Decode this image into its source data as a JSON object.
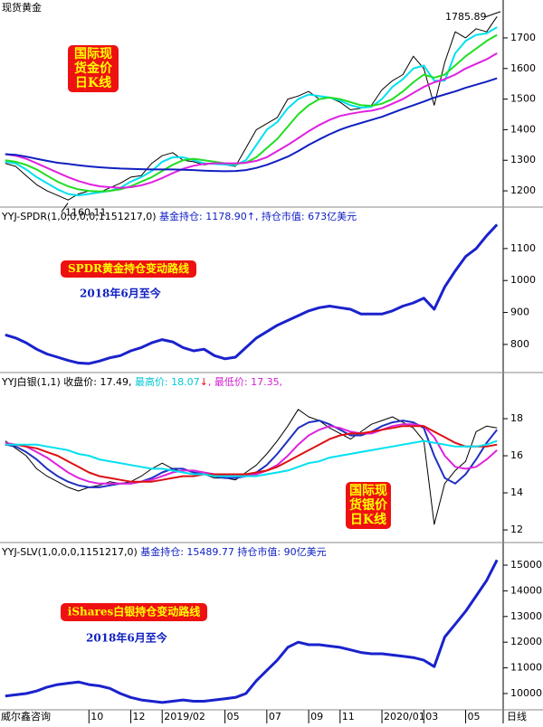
{
  "chart_data": [
    {
      "type": "line",
      "title": "现货黄金",
      "box_label": [
        "国际现",
        "货金价",
        "日K线"
      ],
      "high": 1785.89,
      "low": 1160.11,
      "ylim": [
        1147,
        1824
      ],
      "yticks": [
        1200,
        1300,
        1400,
        1500,
        1600,
        1700
      ],
      "series": [
        {
          "color": "#000000",
          "width": 1,
          "values": [
            1290,
            1280,
            1250,
            1220,
            1200,
            1185,
            1170,
            1190,
            1200,
            1195,
            1210,
            1225,
            1245,
            1250,
            1290,
            1315,
            1325,
            1300,
            1295,
            1285,
            1290,
            1285,
            1280,
            1340,
            1400,
            1420,
            1440,
            1500,
            1510,
            1525,
            1500,
            1505,
            1490,
            1465,
            1470,
            1480,
            1530,
            1560,
            1580,
            1640,
            1600,
            1480,
            1620,
            1720,
            1700,
            1730,
            1720,
            1770
          ]
        },
        {
          "color": "#00e0f0",
          "width": 2,
          "values": [
            1295,
            1290,
            1270,
            1245,
            1225,
            1205,
            1190,
            1185,
            1190,
            1195,
            1200,
            1210,
            1230,
            1245,
            1265,
            1295,
            1310,
            1310,
            1300,
            1290,
            1288,
            1286,
            1284,
            1300,
            1350,
            1400,
            1425,
            1470,
            1500,
            1515,
            1510,
            1505,
            1495,
            1480,
            1472,
            1475,
            1500,
            1540,
            1565,
            1600,
            1610,
            1560,
            1560,
            1650,
            1690,
            1710,
            1715,
            1735
          ]
        },
        {
          "color": "#22dd22",
          "width": 2,
          "values": [
            1300,
            1295,
            1285,
            1270,
            1250,
            1230,
            1215,
            1205,
            1200,
            1198,
            1200,
            1205,
            1215,
            1230,
            1245,
            1265,
            1285,
            1300,
            1305,
            1300,
            1295,
            1290,
            1288,
            1292,
            1310,
            1340,
            1370,
            1410,
            1450,
            1480,
            1500,
            1505,
            1500,
            1490,
            1480,
            1478,
            1485,
            1500,
            1525,
            1555,
            1580,
            1570,
            1580,
            1610,
            1640,
            1665,
            1690,
            1710
          ]
        },
        {
          "color": "#e020e0",
          "width": 2,
          "values": [
            1320,
            1315,
            1305,
            1290,
            1275,
            1260,
            1245,
            1232,
            1222,
            1215,
            1212,
            1210,
            1212,
            1218,
            1228,
            1242,
            1258,
            1272,
            1282,
            1288,
            1290,
            1290,
            1290,
            1292,
            1298,
            1310,
            1330,
            1350,
            1372,
            1395,
            1415,
            1432,
            1445,
            1452,
            1458,
            1462,
            1470,
            1485,
            1500,
            1520,
            1540,
            1555,
            1565,
            1580,
            1600,
            1615,
            1630,
            1650
          ]
        },
        {
          "color": "#1020c0",
          "width": 2,
          "values": [
            1320,
            1318,
            1312,
            1305,
            1298,
            1292,
            1288,
            1284,
            1280,
            1277,
            1275,
            1273,
            1272,
            1271,
            1270,
            1270,
            1270,
            1269,
            1268,
            1266,
            1265,
            1264,
            1265,
            1268,
            1275,
            1285,
            1298,
            1312,
            1330,
            1350,
            1368,
            1385,
            1400,
            1412,
            1422,
            1432,
            1442,
            1455,
            1468,
            1480,
            1492,
            1505,
            1515,
            1525,
            1537,
            1547,
            1557,
            1568
          ]
        }
      ]
    },
    {
      "type": "line",
      "header": [
        {
          "text": "YYJ-SPDR(1,0,0,0,0,1151217,0) ",
          "color": "#000000"
        },
        {
          "text": "基金持仓: 1178.90↑, 持仓市值: 673亿美元",
          "color": "#1020c0"
        }
      ],
      "box_label": [
        "SPDR黄金持仓变动路线"
      ],
      "subtitle": "2018年6月至今",
      "ylim": [
        712,
        1227
      ],
      "yticks": [
        800,
        900,
        1000,
        1100
      ],
      "series": [
        {
          "color": "#1a22cc",
          "width": 3,
          "values": [
            830,
            820,
            805,
            785,
            770,
            760,
            750,
            742,
            740,
            748,
            758,
            765,
            780,
            790,
            805,
            815,
            808,
            790,
            780,
            785,
            765,
            755,
            760,
            790,
            820,
            840,
            860,
            875,
            890,
            905,
            915,
            920,
            915,
            910,
            895,
            895,
            895,
            905,
            920,
            930,
            945,
            910,
            980,
            1030,
            1075,
            1100,
            1140,
            1175
          ]
        }
      ]
    },
    {
      "type": "line",
      "header": [
        {
          "text": "YYJ白银(1,1) 收盘价: 17.49, ",
          "color": "#000000"
        },
        {
          "text": "最高价: 18.07",
          "color": "#00c8d8"
        },
        {
          "text": "↓",
          "color": "#e01010"
        },
        {
          "text": ", 最低价: 17.35,",
          "color": "#d020d0"
        }
      ],
      "box_label": [
        "国际现",
        "货银价",
        "日K线"
      ],
      "ylim": [
        11.32,
        20.44
      ],
      "yticks": [
        12,
        14,
        16,
        18
      ],
      "series": [
        {
          "color": "#000000",
          "width": 1,
          "values": [
            16.8,
            16.4,
            16.0,
            15.3,
            14.9,
            14.6,
            14.3,
            14.1,
            14.3,
            14.4,
            14.6,
            14.5,
            14.6,
            14.9,
            15.3,
            15.6,
            15.3,
            15.1,
            15.0,
            15.0,
            14.8,
            14.8,
            14.7,
            15.1,
            15.5,
            16.1,
            16.8,
            17.6,
            18.5,
            18.1,
            17.9,
            17.5,
            17.2,
            16.9,
            17.3,
            17.7,
            17.9,
            18.1,
            17.8,
            17.5,
            16.8,
            12.3,
            14.5,
            15.2,
            15.7,
            17.3,
            17.6,
            17.5
          ]
        },
        {
          "color": "#2030c0",
          "width": 2,
          "values": [
            16.6,
            16.5,
            16.2,
            15.8,
            15.3,
            14.9,
            14.6,
            14.4,
            14.3,
            14.3,
            14.4,
            14.5,
            14.5,
            14.6,
            14.8,
            15.1,
            15.3,
            15.3,
            15.1,
            15.0,
            14.9,
            14.8,
            14.8,
            14.9,
            15.1,
            15.5,
            16.1,
            16.8,
            17.5,
            17.8,
            17.9,
            17.7,
            17.4,
            17.1,
            17.1,
            17.3,
            17.6,
            17.8,
            17.9,
            17.8,
            17.5,
            16.0,
            14.8,
            14.5,
            15.0,
            15.8,
            16.7,
            17.4
          ]
        },
        {
          "color": "#dd22dd",
          "width": 2,
          "values": [
            16.7,
            16.6,
            16.5,
            16.2,
            15.9,
            15.5,
            15.1,
            14.8,
            14.6,
            14.5,
            14.5,
            14.5,
            14.5,
            14.6,
            14.7,
            14.9,
            15.1,
            15.2,
            15.2,
            15.1,
            15.0,
            14.9,
            14.9,
            14.9,
            15.0,
            15.2,
            15.5,
            16.0,
            16.6,
            17.1,
            17.4,
            17.6,
            17.5,
            17.3,
            17.2,
            17.2,
            17.4,
            17.6,
            17.7,
            17.7,
            17.6,
            17.0,
            16.0,
            15.4,
            15.3,
            15.4,
            15.8,
            16.3
          ]
        },
        {
          "color": "#dd1010",
          "width": 2,
          "values": [
            16.6,
            16.6,
            16.5,
            16.4,
            16.2,
            16.0,
            15.7,
            15.4,
            15.1,
            14.9,
            14.8,
            14.7,
            14.6,
            14.6,
            14.6,
            14.7,
            14.8,
            14.9,
            14.9,
            15.0,
            15.0,
            15.0,
            15.0,
            15.0,
            15.1,
            15.2,
            15.4,
            15.7,
            16.0,
            16.3,
            16.6,
            16.9,
            17.1,
            17.2,
            17.2,
            17.3,
            17.4,
            17.5,
            17.6,
            17.6,
            17.6,
            17.3,
            17.0,
            16.7,
            16.5,
            16.5,
            16.5,
            16.6
          ]
        },
        {
          "color": "#00e0f0",
          "width": 2,
          "values": [
            16.6,
            16.6,
            16.6,
            16.6,
            16.5,
            16.4,
            16.3,
            16.1,
            16.0,
            15.8,
            15.7,
            15.6,
            15.5,
            15.4,
            15.3,
            15.3,
            15.2,
            15.1,
            15.0,
            15.0,
            14.9,
            14.9,
            14.9,
            14.9,
            14.9,
            15.0,
            15.1,
            15.2,
            15.4,
            15.6,
            15.7,
            15.9,
            16.0,
            16.1,
            16.2,
            16.3,
            16.4,
            16.5,
            16.6,
            16.7,
            16.8,
            16.7,
            16.6,
            16.5,
            16.5,
            16.5,
            16.6,
            16.8
          ]
        }
      ]
    },
    {
      "type": "line",
      "header": [
        {
          "text": "YYJ-SLV(1,0,0,0,1151217,0) ",
          "color": "#000000"
        },
        {
          "text": "基金持仓: 15489.77  持仓市值: 90亿美元",
          "color": "#1020c0"
        }
      ],
      "box_label": [
        "iShares白银持仓变动路线"
      ],
      "subtitle": "2018年6月至今",
      "source": "威尔鑫咨询",
      "frequency": "日线",
      "ylim": [
        9366,
        15845
      ],
      "yticks": [
        10000,
        11000,
        12000,
        13000,
        14000,
        15000
      ],
      "categories": [
        null,
        null,
        null,
        null,
        null,
        null,
        null,
        null,
        "10",
        null,
        null,
        null,
        "12",
        null,
        null,
        "2019/02",
        null,
        null,
        null,
        null,
        null,
        "05",
        null,
        null,
        null,
        "07",
        null,
        null,
        null,
        "09",
        null,
        null,
        "11",
        null,
        null,
        null,
        "2020/01",
        null,
        null,
        null,
        "03",
        null,
        null,
        null,
        "05",
        null,
        null,
        null
      ],
      "series": [
        {
          "color": "#1a22cc",
          "width": 3,
          "values": [
            9900,
            9950,
            10000,
            10100,
            10250,
            10350,
            10400,
            10450,
            10350,
            10300,
            10200,
            10000,
            9850,
            9750,
            9700,
            9650,
            9700,
            9750,
            9700,
            9700,
            9750,
            9800,
            9850,
            10000,
            10500,
            10900,
            11300,
            11800,
            12000,
            11900,
            11900,
            11850,
            11800,
            11700,
            11600,
            11550,
            11550,
            11500,
            11450,
            11400,
            11300,
            11050,
            12200,
            12700,
            13200,
            13800,
            14400,
            15200
          ]
        }
      ]
    }
  ]
}
